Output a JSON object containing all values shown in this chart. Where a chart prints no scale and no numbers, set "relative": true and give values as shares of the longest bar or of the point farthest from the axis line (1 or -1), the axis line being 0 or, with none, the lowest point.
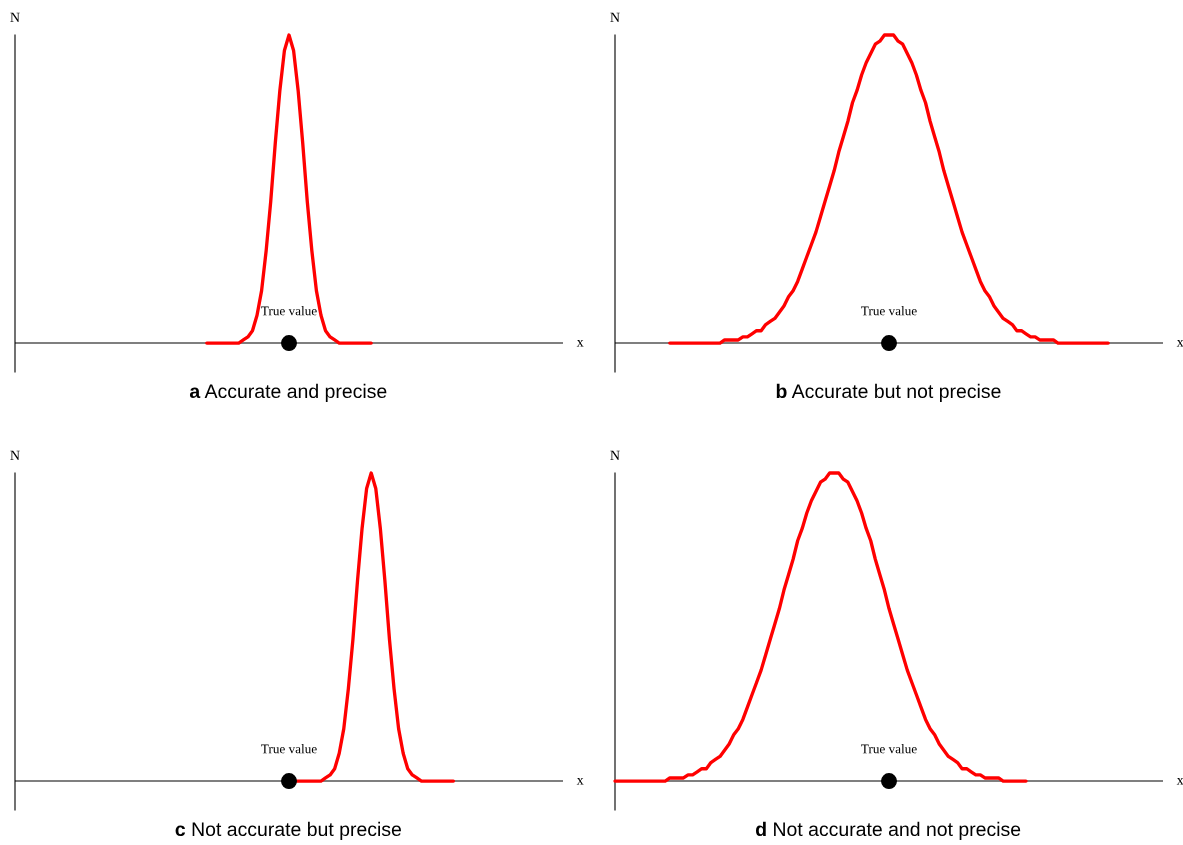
{
  "chart_data": [
    {
      "type": "line",
      "title": "a Accurate and precise",
      "xlabel": "x",
      "ylabel": "N",
      "relative": true,
      "annotations": [
        "True value"
      ],
      "categories": [
        null,
        null,
        null,
        null,
        null,
        null,
        null,
        null,
        null,
        null,
        null,
        null,
        null,
        null,
        null,
        null,
        null,
        null,
        null,
        null,
        null,
        null,
        null,
        null,
        null,
        null,
        null,
        null,
        null,
        null,
        null,
        null,
        null,
        null,
        null,
        null,
        null,
        null,
        null,
        null,
        null,
        null,
        null,
        null,
        null,
        null,
        null,
        null,
        null,
        null,
        null,
        null,
        null,
        null,
        null,
        null,
        null,
        null,
        null,
        null,
        null,
        null,
        null,
        null,
        null,
        null,
        null,
        null,
        null,
        null,
        null,
        null,
        null,
        null,
        null,
        null,
        null,
        null,
        null,
        null,
        null,
        null,
        null,
        null,
        null,
        null,
        null,
        null,
        null,
        null,
        null,
        null,
        null,
        null,
        null,
        null,
        null,
        null,
        null,
        null,
        null,
        null,
        null,
        null,
        null,
        null,
        null,
        null,
        null,
        null,
        null,
        null,
        null,
        null,
        null,
        null,
        null,
        null,
        null,
        null,
        null
      ],
      "series": [
        {
          "color": "#ff0000",
          "values": [
            null,
            null,
            null,
            null,
            null,
            null,
            null,
            null,
            null,
            null,
            null,
            null,
            null,
            null,
            null,
            null,
            null,
            null,
            null,
            null,
            null,
            null,
            null,
            null,
            null,
            null,
            null,
            null,
            null,
            null,
            null,
            null,
            null,
            null,
            null,
            null,
            null,
            null,
            null,
            null,
            null,
            null,
            0,
            0,
            0,
            0,
            0,
            0,
            0,
            0,
            0.01,
            0.02,
            0.04,
            0.09,
            0.17,
            0.3,
            0.46,
            0.65,
            0.82,
            0.95,
            1,
            0.95,
            0.82,
            0.65,
            0.46,
            0.3,
            0.17,
            0.09,
            0.04,
            0.02,
            0.01,
            0,
            0,
            0,
            0,
            0,
            0,
            0,
            0,
            null,
            null,
            null,
            null,
            null,
            null,
            null,
            null,
            null,
            null,
            null,
            null,
            null,
            null,
            null,
            null,
            null,
            null,
            null,
            null,
            null,
            null,
            null,
            null,
            null,
            null,
            null,
            null,
            null,
            null,
            null,
            null,
            null,
            null,
            null,
            null,
            null,
            null,
            null,
            null,
            null,
            null
          ]
        }
      ]
    },
    {
      "type": "line",
      "title": "b Accurate but not precise",
      "xlabel": "x",
      "ylabel": "N",
      "relative": true,
      "annotations": [
        "True value"
      ],
      "categories": [
        null,
        null,
        null,
        null,
        null,
        null,
        null,
        null,
        null,
        null,
        null,
        null,
        null,
        null,
        null,
        null,
        null,
        null,
        null,
        null,
        null,
        null,
        null,
        null,
        null,
        null,
        null,
        null,
        null,
        null,
        null,
        null,
        null,
        null,
        null,
        null,
        null,
        null,
        null,
        null,
        null,
        null,
        null,
        null,
        null,
        null,
        null,
        null,
        null,
        null,
        null,
        null,
        null,
        null,
        null,
        null,
        null,
        null,
        null,
        null,
        null,
        null,
        null,
        null,
        null,
        null,
        null,
        null,
        null,
        null,
        null,
        null,
        null,
        null,
        null,
        null,
        null,
        null,
        null,
        null,
        null,
        null,
        null,
        null,
        null,
        null,
        null,
        null,
        null,
        null,
        null,
        null,
        null,
        null,
        null,
        null,
        null,
        null,
        null,
        null,
        null,
        null,
        null,
        null,
        null,
        null,
        null,
        null,
        null,
        null,
        null,
        null,
        null,
        null,
        null,
        null,
        null,
        null,
        null,
        null,
        null
      ],
      "series": [
        {
          "color": "#ff0000",
          "values": [
            null,
            null,
            null,
            null,
            null,
            null,
            null,
            null,
            null,
            null,
            null,
            null,
            0,
            0,
            0,
            0,
            0,
            0,
            0,
            0,
            0,
            0,
            0,
            0,
            0.01,
            0.01,
            0.01,
            0.01,
            0.02,
            0.02,
            0.03,
            0.04,
            0.04,
            0.06,
            0.07,
            0.08,
            0.1,
            0.12,
            0.15,
            0.17,
            0.2,
            0.24,
            0.28,
            0.32,
            0.36,
            0.41,
            0.46,
            0.51,
            0.56,
            0.62,
            0.67,
            0.72,
            0.78,
            0.82,
            0.87,
            0.91,
            0.94,
            0.97,
            0.98,
            1,
            1,
            1,
            0.98,
            0.97,
            0.94,
            0.91,
            0.87,
            0.82,
            0.78,
            0.72,
            0.67,
            0.62,
            0.56,
            0.51,
            0.46,
            0.41,
            0.36,
            0.32,
            0.28,
            0.24,
            0.2,
            0.17,
            0.15,
            0.12,
            0.1,
            0.08,
            0.07,
            0.06,
            0.04,
            0.04,
            0.03,
            0.02,
            0.02,
            0.01,
            0.01,
            0.01,
            0.01,
            0,
            0,
            0,
            0,
            0,
            0,
            0,
            0,
            0,
            0,
            0,
            0,
            null,
            null,
            null,
            null,
            null,
            null,
            null,
            null,
            null,
            null,
            null,
            null
          ]
        }
      ]
    },
    {
      "type": "line",
      "title": "c Not accurate but precise",
      "xlabel": "x",
      "ylabel": "N",
      "relative": true,
      "annotations": [
        "True value"
      ],
      "categories": [
        null,
        null,
        null,
        null,
        null,
        null,
        null,
        null,
        null,
        null,
        null,
        null,
        null,
        null,
        null,
        null,
        null,
        null,
        null,
        null,
        null,
        null,
        null,
        null,
        null,
        null,
        null,
        null,
        null,
        null,
        null,
        null,
        null,
        null,
        null,
        null,
        null,
        null,
        null,
        null,
        null,
        null,
        null,
        null,
        null,
        null,
        null,
        null,
        null,
        null,
        null,
        null,
        null,
        null,
        null,
        null,
        null,
        null,
        null,
        null,
        null,
        null,
        null,
        null,
        null,
        null,
        null,
        null,
        null,
        null,
        null,
        null,
        null,
        null,
        null,
        null,
        null,
        null,
        null,
        null,
        null,
        null,
        null,
        null,
        null,
        null,
        null,
        null,
        null,
        null,
        null,
        null,
        null,
        null,
        null,
        null,
        null,
        null,
        null,
        null,
        null,
        null,
        null,
        null,
        null,
        null,
        null,
        null,
        null,
        null,
        null,
        null,
        null,
        null,
        null,
        null,
        null,
        null,
        null,
        null,
        null
      ],
      "series": [
        {
          "color": "#ff0000",
          "values": [
            null,
            null,
            null,
            null,
            null,
            null,
            null,
            null,
            null,
            null,
            null,
            null,
            null,
            null,
            null,
            null,
            null,
            null,
            null,
            null,
            null,
            null,
            null,
            null,
            null,
            null,
            null,
            null,
            null,
            null,
            null,
            null,
            null,
            null,
            null,
            null,
            null,
            null,
            null,
            null,
            null,
            null,
            null,
            null,
            null,
            null,
            null,
            null,
            null,
            null,
            null,
            null,
            null,
            null,
            null,
            null,
            null,
            null,
            null,
            null,
            0,
            0,
            0,
            0,
            0,
            0,
            0,
            0,
            0.01,
            0.02,
            0.04,
            0.09,
            0.17,
            0.3,
            0.46,
            0.65,
            0.82,
            0.95,
            1,
            0.95,
            0.82,
            0.65,
            0.46,
            0.3,
            0.17,
            0.09,
            0.04,
            0.02,
            0.01,
            0,
            0,
            0,
            0,
            0,
            0,
            0,
            0,
            null,
            null,
            null,
            null,
            null,
            null,
            null,
            null,
            null,
            null,
            null,
            null,
            null,
            null,
            null,
            null,
            null,
            null,
            null,
            null,
            null,
            null,
            null,
            null
          ]
        }
      ]
    },
    {
      "type": "line",
      "title": "d Not accurate and not precise",
      "xlabel": "x",
      "ylabel": "N",
      "relative": true,
      "annotations": [
        "True value"
      ],
      "categories": [
        null,
        null,
        null,
        null,
        null,
        null,
        null,
        null,
        null,
        null,
        null,
        null,
        null,
        null,
        null,
        null,
        null,
        null,
        null,
        null,
        null,
        null,
        null,
        null,
        null,
        null,
        null,
        null,
        null,
        null,
        null,
        null,
        null,
        null,
        null,
        null,
        null,
        null,
        null,
        null,
        null,
        null,
        null,
        null,
        null,
        null,
        null,
        null,
        null,
        null,
        null,
        null,
        null,
        null,
        null,
        null,
        null,
        null,
        null,
        null,
        null,
        null,
        null,
        null,
        null,
        null,
        null,
        null,
        null,
        null,
        null,
        null,
        null,
        null,
        null,
        null,
        null,
        null,
        null,
        null,
        null,
        null,
        null,
        null,
        null,
        null,
        null,
        null,
        null,
        null,
        null,
        null,
        null,
        null,
        null,
        null,
        null,
        null,
        null,
        null,
        null,
        null,
        null,
        null,
        null,
        null,
        null,
        null,
        null,
        null,
        null,
        null,
        null,
        null,
        null,
        null,
        null,
        null,
        null,
        null,
        null
      ],
      "series": [
        {
          "color": "#ff0000",
          "values": [
            0,
            0,
            0,
            0,
            0,
            0,
            0,
            0,
            0,
            0,
            0,
            0,
            0.01,
            0.01,
            0.01,
            0.01,
            0.02,
            0.02,
            0.03,
            0.04,
            0.04,
            0.06,
            0.07,
            0.08,
            0.1,
            0.12,
            0.15,
            0.17,
            0.2,
            0.24,
            0.28,
            0.32,
            0.36,
            0.41,
            0.46,
            0.51,
            0.56,
            0.62,
            0.67,
            0.72,
            0.78,
            0.82,
            0.87,
            0.91,
            0.94,
            0.97,
            0.98,
            1,
            1,
            1,
            0.98,
            0.97,
            0.94,
            0.91,
            0.87,
            0.82,
            0.78,
            0.72,
            0.67,
            0.62,
            0.56,
            0.51,
            0.46,
            0.41,
            0.36,
            0.32,
            0.28,
            0.24,
            0.2,
            0.17,
            0.15,
            0.12,
            0.1,
            0.08,
            0.07,
            0.06,
            0.04,
            0.04,
            0.03,
            0.02,
            0.02,
            0.01,
            0.01,
            0.01,
            0.01,
            0,
            0,
            0,
            0,
            0,
            0,
            null,
            null,
            null,
            null,
            null,
            null,
            null,
            null,
            null,
            null,
            null,
            null,
            null,
            null,
            null,
            null,
            null,
            null,
            null,
            null,
            null,
            null,
            null,
            null,
            null,
            null,
            null,
            null,
            null,
            null
          ]
        }
      ]
    }
  ]
}
